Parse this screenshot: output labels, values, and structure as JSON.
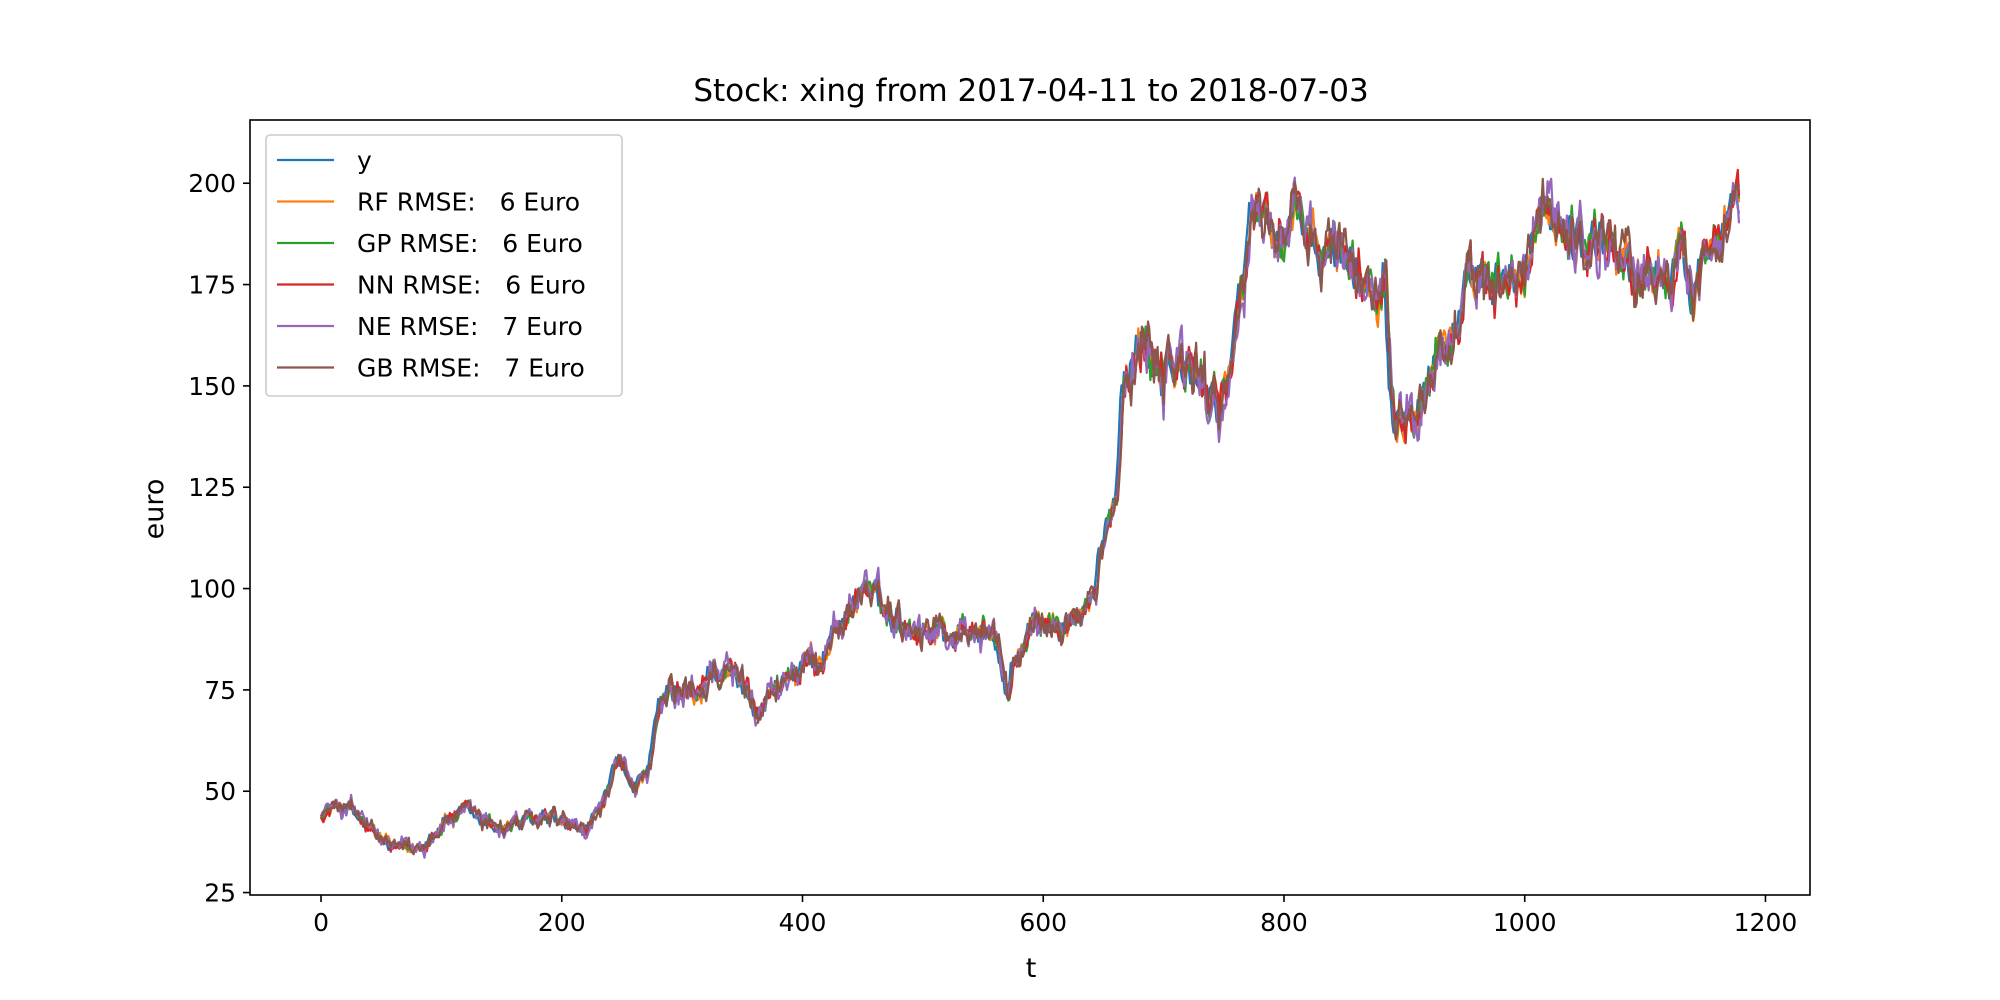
{
  "chart_data": {
    "type": "line",
    "title": "Stock: xing from 2017-04-11 to 2018-07-03",
    "xlabel": "t",
    "ylabel": "euro",
    "xlim": [
      -59,
      1237
    ],
    "ylim": [
      24.4,
      215.6
    ],
    "xticks": [
      0,
      200,
      400,
      600,
      800,
      1000,
      1200
    ],
    "yticks": [
      25,
      50,
      75,
      100,
      125,
      150,
      175,
      200
    ],
    "grid": false,
    "legend_position": "upper left",
    "keypoints": [
      [
        0,
        45
      ],
      [
        12,
        46
      ],
      [
        20,
        47
      ],
      [
        30,
        43
      ],
      [
        45,
        38
      ],
      [
        60,
        35
      ],
      [
        75,
        34
      ],
      [
        90,
        40
      ],
      [
        105,
        44
      ],
      [
        120,
        43
      ],
      [
        140,
        41
      ],
      [
        160,
        42
      ],
      [
        180,
        42
      ],
      [
        200,
        41
      ],
      [
        215,
        38
      ],
      [
        230,
        45
      ],
      [
        245,
        55
      ],
      [
        260,
        52
      ],
      [
        272,
        55
      ],
      [
        280,
        70
      ],
      [
        295,
        74
      ],
      [
        310,
        71
      ],
      [
        325,
        82
      ],
      [
        340,
        78
      ],
      [
        355,
        75
      ],
      [
        370,
        73
      ],
      [
        385,
        79
      ],
      [
        400,
        80
      ],
      [
        415,
        84
      ],
      [
        425,
        90
      ],
      [
        440,
        96
      ],
      [
        450,
        101
      ],
      [
        465,
        94
      ],
      [
        480,
        93
      ],
      [
        500,
        91
      ],
      [
        515,
        90
      ],
      [
        530,
        89
      ],
      [
        545,
        91
      ],
      [
        560,
        86
      ],
      [
        568,
        75
      ],
      [
        580,
        85
      ],
      [
        595,
        90
      ],
      [
        610,
        91
      ],
      [
        625,
        92
      ],
      [
        640,
        95
      ],
      [
        650,
        112
      ],
      [
        660,
        125
      ],
      [
        665,
        155
      ],
      [
        675,
        162
      ],
      [
        690,
        160
      ],
      [
        705,
        158
      ],
      [
        720,
        152
      ],
      [
        735,
        148
      ],
      [
        750,
        153
      ],
      [
        760,
        160
      ],
      [
        770,
        190
      ],
      [
        780,
        195
      ],
      [
        800,
        185
      ],
      [
        815,
        190
      ],
      [
        830,
        178
      ],
      [
        845,
        185
      ],
      [
        860,
        178
      ],
      [
        875,
        175
      ],
      [
        883,
        185
      ],
      [
        890,
        145
      ],
      [
        900,
        152
      ],
      [
        915,
        155
      ],
      [
        930,
        160
      ],
      [
        945,
        168
      ],
      [
        960,
        172
      ],
      [
        975,
        170
      ],
      [
        990,
        175
      ],
      [
        1005,
        182
      ],
      [
        1020,
        195
      ],
      [
        1035,
        190
      ],
      [
        1050,
        186
      ],
      [
        1065,
        188
      ],
      [
        1080,
        183
      ],
      [
        1095,
        176
      ],
      [
        1110,
        178
      ],
      [
        1125,
        180
      ],
      [
        1140,
        177
      ],
      [
        1150,
        187
      ],
      [
        1160,
        195
      ],
      [
        1170,
        200
      ],
      [
        1178,
        195
      ]
    ],
    "series": [
      {
        "name": "y",
        "legend": "y",
        "color": "#1f77b4",
        "noise": 2.0,
        "shift": 0,
        "amp": 4.0
      },
      {
        "name": "RF",
        "legend": "RF RMSE:   6 Euro",
        "color": "#ff7f0e",
        "noise": 2.2,
        "shift": 2,
        "amp": 4.5
      },
      {
        "name": "GP",
        "legend": "GP RMSE:   6 Euro",
        "color": "#2ca02c",
        "noise": 2.2,
        "shift": 2,
        "amp": 4.5
      },
      {
        "name": "NN",
        "legend": "NN RMSE:   6 Euro",
        "color": "#d62728",
        "noise": 2.3,
        "shift": 2,
        "amp": 4.8
      },
      {
        "name": "NE",
        "legend": "NE RMSE:   7 Euro",
        "color": "#9467bd",
        "noise": 2.8,
        "shift": 2,
        "amp": 6.0
      },
      {
        "name": "GB",
        "legend": "GB RMSE:   7 Euro",
        "color": "#8c564b",
        "noise": 2.6,
        "shift": 2,
        "amp": 5.5
      }
    ]
  }
}
